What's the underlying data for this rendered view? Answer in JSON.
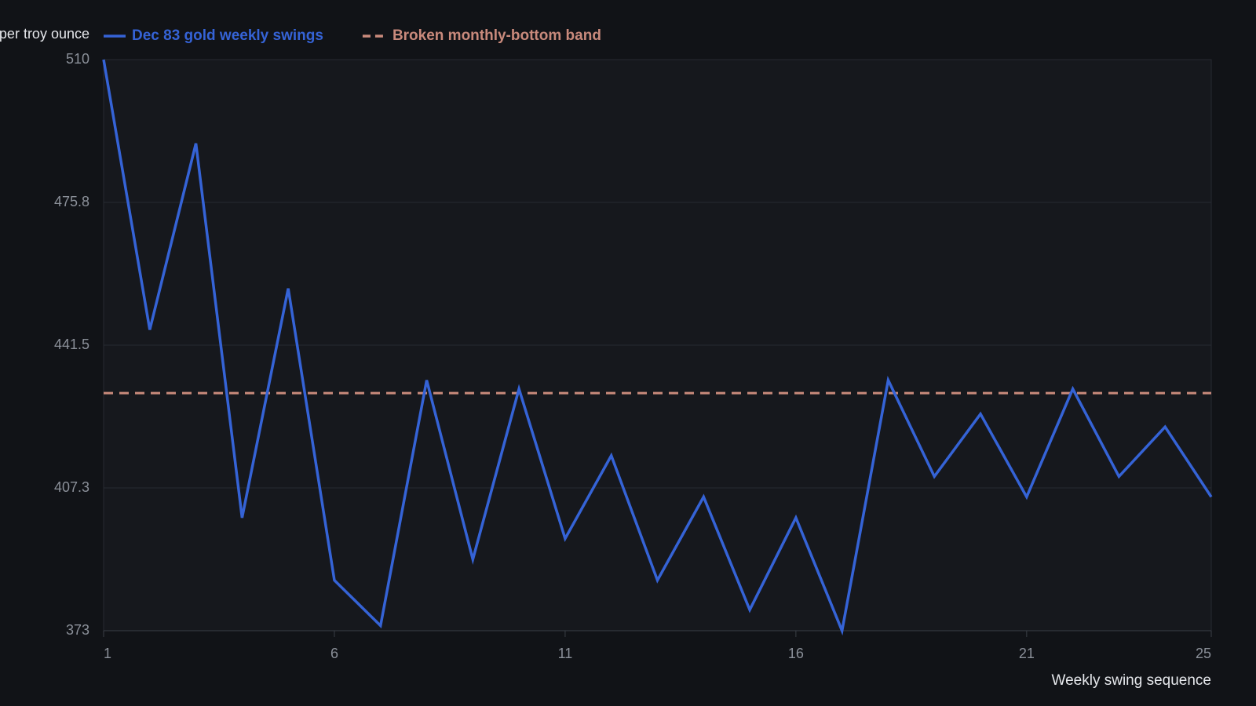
{
  "chart_data": {
    "type": "line",
    "y_label": "per troy ounce",
    "x_label": "Weekly swing sequence",
    "x": [
      1,
      2,
      3,
      4,
      5,
      6,
      7,
      8,
      9,
      10,
      11,
      12,
      13,
      14,
      15,
      16,
      17,
      18,
      19,
      20,
      21,
      22,
      23,
      24,
      25
    ],
    "series": [
      {
        "name": "Dec 83 gold weekly swings",
        "color": "#3563d6",
        "values": [
          510,
          445.2,
          489.9,
          400.1,
          455.1,
          385.1,
          374.2,
          433.1,
          390.1,
          431,
          395.1,
          415,
          385.1,
          405.1,
          378,
          400.1,
          373,
          433.1,
          410,
          425,
          405.1,
          431,
          410,
          421.9,
          405.1
        ]
      }
    ],
    "reference_line": {
      "name": "Broken monthly-bottom band",
      "value": 430,
      "color": "#c98a7c",
      "dashed": true
    },
    "xlim": [
      1,
      25
    ],
    "xticks": [
      1,
      6,
      11,
      16,
      21,
      25
    ],
    "ylim": [
      373,
      510
    ],
    "yticks": [
      373,
      {
        "value": 407.25,
        "label": "407.3"
      },
      441.5,
      {
        "value": 475.75,
        "label": "475.8"
      },
      510
    ],
    "grid": true
  }
}
